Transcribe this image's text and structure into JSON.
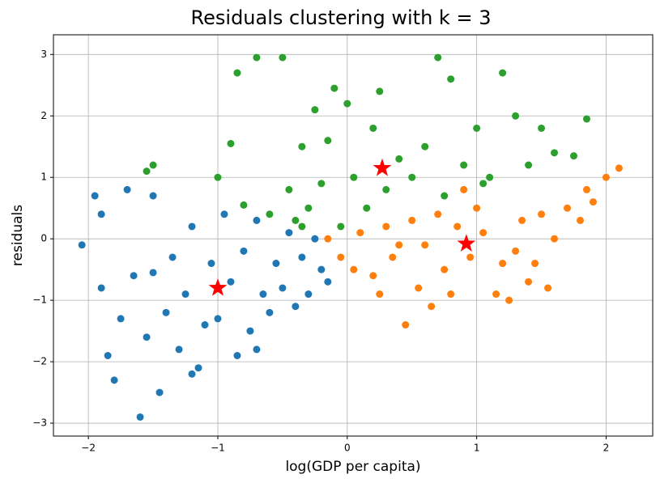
{
  "chart_data": {
    "type": "scatter",
    "title": "Residuals clustering with k = 3",
    "x_label": "log(GDP per capita)",
    "y_label": "residuals",
    "xlim": [
      -2.27,
      2.36
    ],
    "ylim": [
      -3.21,
      3.32
    ],
    "xticks": [
      {
        "value": -2,
        "label": "−2"
      },
      {
        "value": -1,
        "label": "−1"
      },
      0,
      1,
      2
    ],
    "yticks": [
      {
        "value": -3,
        "label": "−3"
      },
      {
        "value": -2,
        "label": "−2"
      },
      {
        "value": -1,
        "label": "−1"
      },
      0,
      1,
      2,
      3
    ],
    "grid": true,
    "series": [
      {
        "color": "#1f77b4",
        "marker": "circle",
        "x": [
          -2.05,
          -1.95,
          -1.9,
          -1.85,
          -1.8,
          -1.75,
          -1.7,
          -1.65,
          -1.6,
          -1.55,
          -1.5,
          -1.45,
          -1.4,
          -1.35,
          -1.3,
          -1.25,
          -1.2,
          -1.15,
          -1.1,
          -1.05,
          -1.0,
          -0.95,
          -0.9,
          -0.85,
          -0.8,
          -0.75,
          -0.7,
          -0.65,
          -0.6,
          -0.55,
          -0.5,
          -0.45,
          -0.4,
          -0.35,
          -0.3,
          -0.25,
          -0.2,
          -0.15,
          -1.5,
          -1.9,
          -1.2,
          -0.7
        ],
        "values": [
          -0.1,
          0.7,
          -0.8,
          -1.9,
          -2.3,
          -1.3,
          0.8,
          -0.6,
          -2.9,
          -1.6,
          -0.55,
          -2.5,
          -1.2,
          -0.3,
          -1.8,
          -0.9,
          0.2,
          -2.1,
          -1.4,
          -0.4,
          -1.3,
          0.4,
          -0.7,
          -1.9,
          -0.2,
          -1.5,
          0.3,
          -0.9,
          -1.2,
          -0.4,
          -0.8,
          0.1,
          -1.1,
          -0.3,
          -0.9,
          0.0,
          -0.5,
          -0.7,
          0.7,
          0.4,
          -2.2,
          -1.8
        ]
      },
      {
        "color": "#ff7f0e",
        "marker": "circle",
        "x": [
          -0.15,
          -0.05,
          0.05,
          0.1,
          0.2,
          0.3,
          0.35,
          0.45,
          0.5,
          0.55,
          0.6,
          0.65,
          0.7,
          0.75,
          0.8,
          0.85,
          0.9,
          0.95,
          1.0,
          1.05,
          1.15,
          1.25,
          1.3,
          1.35,
          1.4,
          1.45,
          1.5,
          1.55,
          1.6,
          1.7,
          1.8,
          1.85,
          1.9,
          2.0,
          2.1,
          1.2,
          0.4,
          0.25
        ],
        "values": [
          0.0,
          -0.3,
          -0.5,
          0.1,
          -0.6,
          0.2,
          -0.3,
          -1.4,
          0.3,
          -0.8,
          -0.1,
          -1.1,
          0.4,
          -0.5,
          -0.9,
          0.2,
          0.8,
          -0.3,
          0.5,
          0.1,
          -0.9,
          -1.0,
          -0.2,
          0.3,
          -0.7,
          -0.4,
          0.4,
          -0.8,
          0.0,
          0.5,
          0.3,
          0.8,
          0.6,
          1.0,
          1.15,
          -0.4,
          -0.1,
          -0.9
        ]
      },
      {
        "color": "#2ca02c",
        "marker": "circle",
        "x": [
          -1.55,
          -1.5,
          -1.0,
          -0.9,
          -0.85,
          -0.8,
          -0.7,
          -0.6,
          -0.5,
          -0.45,
          -0.4,
          -0.35,
          -0.3,
          -0.25,
          -0.2,
          -0.15,
          -0.1,
          -0.05,
          0.0,
          0.05,
          0.15,
          0.2,
          0.25,
          0.3,
          0.4,
          0.5,
          0.6,
          0.7,
          0.75,
          0.8,
          0.9,
          1.0,
          1.05,
          1.1,
          1.2,
          1.3,
          1.4,
          1.5,
          1.6,
          1.75,
          1.85,
          -0.35
        ],
        "values": [
          1.1,
          1.2,
          1.0,
          1.55,
          2.7,
          0.55,
          2.95,
          0.4,
          2.95,
          0.8,
          0.3,
          1.5,
          0.5,
          2.1,
          0.9,
          1.6,
          2.45,
          0.2,
          2.2,
          1.0,
          0.5,
          1.8,
          2.4,
          0.8,
          1.3,
          1.0,
          1.5,
          2.95,
          0.7,
          2.6,
          1.2,
          1.8,
          0.9,
          1.0,
          2.7,
          2.0,
          1.2,
          1.8,
          1.4,
          1.35,
          1.95,
          0.2
        ]
      },
      {
        "color": "red",
        "marker": "star",
        "x": [
          -1.0,
          0.27,
          0.92
        ],
        "values": [
          -0.8,
          1.15,
          -0.08
        ]
      }
    ]
  }
}
